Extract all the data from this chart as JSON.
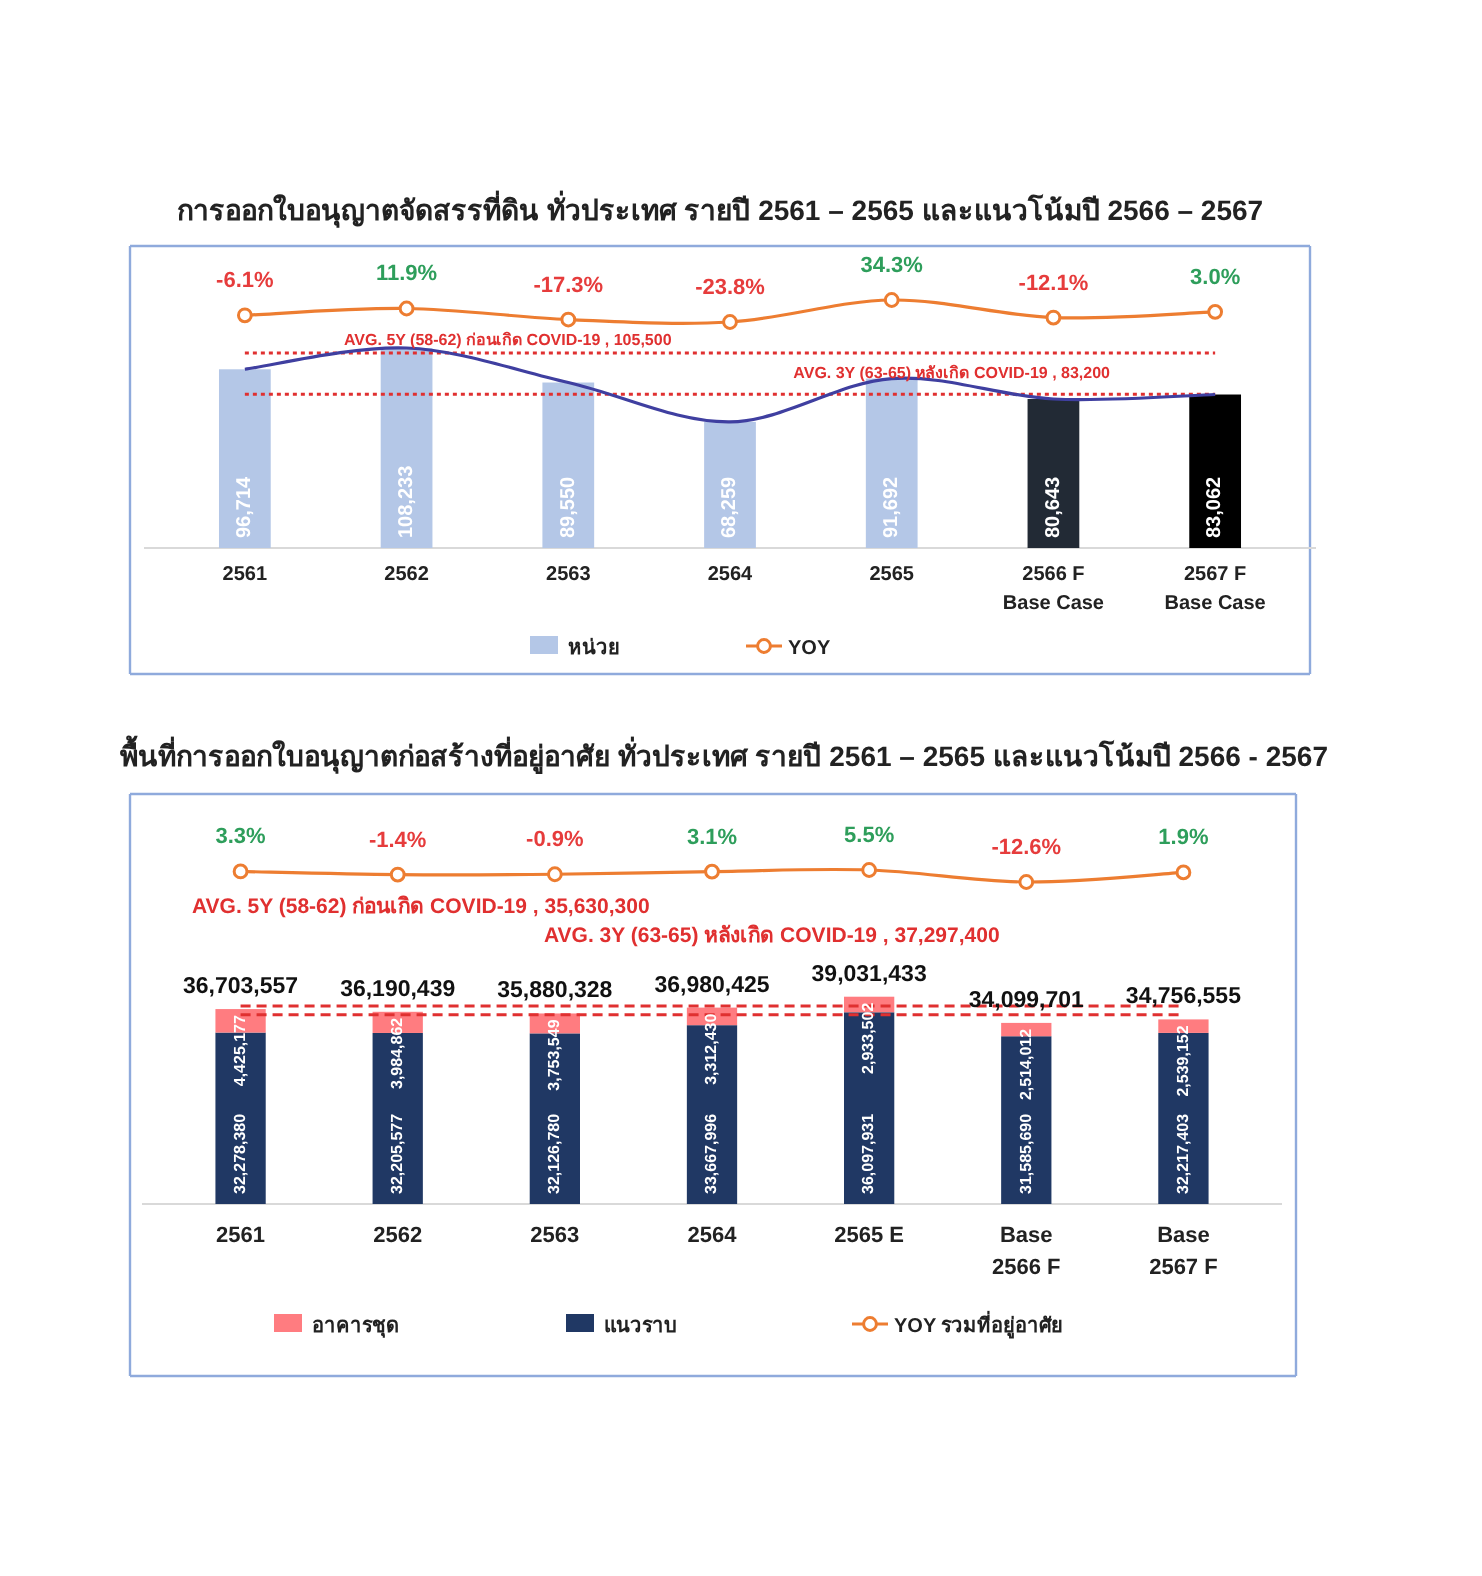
{
  "chart_data": [
    {
      "type": "line",
      "title": "การออกใบอนุญาตจัดสรรที่ดิน ทั่วประเทศ รายปี 2561 – 2565 และแนวโน้มปี 2566 – 2567",
      "categories": [
        null,
        null,
        null,
        null,
        null,
        null,
        null
      ],
      "legend": "bottom",
      "series": [
        {
          "name": "YOY",
          "color": "#ed7d31",
          "marker": "circle",
          "values": [
            -6.1,
            11.9,
            -17.3,
            -23.8,
            34.3,
            -12.1,
            3.0
          ],
          "value_labels": [
            "-6.1%",
            "11.9%",
            "-17.3%",
            "-23.8%",
            "34.3%",
            "-12.1%",
            "3.0%"
          ]
        }
      ]
    },
    {
      "type": "bar",
      "categories": [
        "2561",
        "2562",
        "2563",
        "2564",
        "2565",
        "2566 F\nBase Case",
        "2567 F\nBase Case"
      ],
      "legend": "bottom",
      "series": [
        {
          "name": "หน่วย",
          "color": "#b4c7e7",
          "colors": [
            "#b4c7e7",
            "#b4c7e7",
            "#b4c7e7",
            "#b4c7e7",
            "#b4c7e7",
            "#222a35",
            "#000000"
          ],
          "values": [
            96714,
            108233,
            89550,
            68259,
            91692,
            80643,
            83062
          ],
          "value_labels": [
            "96,714",
            "108,233",
            "89,550",
            "68,259",
            "91,692",
            "80,643",
            "83,062"
          ]
        },
        {
          "type": "line",
          "color": "#3f3fa0",
          "values": [
            96714,
            108233,
            89550,
            68259,
            91692,
            80643,
            83062
          ]
        }
      ],
      "ref_lines": [
        {
          "axis": "y",
          "value": 105500,
          "label": "AVG. 5Y (58-62) ก่อนเกิด COVID-19 , 105,500",
          "color": "#e03030",
          "line_style": "dotted"
        },
        {
          "axis": "y",
          "value": 83200,
          "label": "AVG. 3Y (63-65) หลังเกิด COVID-19 , 83,200",
          "color": "#e03030",
          "line_style": "dotted"
        }
      ]
    },
    {
      "type": "line",
      "title": "พื้นที่การออกใบอนุญาตก่อสร้างที่อยู่อาศัย ทั่วประเทศ รายปี 2561 – 2565 และแนวโน้มปี 2566 - 2567",
      "categories": [
        null,
        null,
        null,
        null,
        null,
        null,
        null
      ],
      "legend": "bottom",
      "series": [
        {
          "name": "YOY รวมที่อยู่อาศัย",
          "color": "#ed7d31",
          "marker": "circle",
          "values": [
            3.3,
            -1.4,
            -0.9,
            3.1,
            5.5,
            -12.6,
            1.9
          ],
          "value_labels": [
            "3.3%",
            "-1.4%",
            "-0.9%",
            "3.1%",
            "5.5%",
            "-12.6%",
            "1.9%"
          ]
        }
      ]
    },
    {
      "type": "bar",
      "categories": [
        "2561",
        "2562",
        "2563",
        "2564",
        "2565 E",
        "Base\n2566 F",
        "Base\n2567 F"
      ],
      "stacked": true,
      "legend": "bottom",
      "series": [
        {
          "name": "แนวราบ",
          "color": "#203864",
          "values": [
            32278380,
            32205577,
            32126780,
            33667996,
            36097931,
            31585690,
            32217403
          ],
          "value_labels": [
            "32,278,380",
            "32,205,577",
            "32,126,780",
            "33,667,996",
            "36,097,931",
            "31,585,690",
            "32,217,403"
          ]
        },
        {
          "name": "อาคารชุด",
          "color": "#ff7c80",
          "values": [
            4425177,
            3984862,
            3753549,
            3312430,
            2933502,
            2514012,
            2539152
          ],
          "value_labels": [
            "4,425,177",
            "3,984,862",
            "3,753,549",
            "3,312,430",
            "2,933,502",
            "2,514,012",
            "2,539,152"
          ]
        }
      ],
      "totals": [
        "36,703,557",
        "36,190,439",
        "35,880,328",
        "36,980,425",
        "39,031,433",
        "34,099,701",
        "34,756,555"
      ],
      "ref_lines": [
        {
          "axis": "y",
          "value": 35630300,
          "label": "AVG. 5Y (58-62) ก่อนเกิด COVID-19 , 35,630,300",
          "color": "#e03030",
          "line_style": "dashed"
        },
        {
          "axis": "y",
          "value": 37297400,
          "label": "AVG. 3Y (63-65) หลังเกิด COVID-19 , 37,297,400",
          "color": "#e03030",
          "line_style": "dashed"
        }
      ]
    }
  ]
}
